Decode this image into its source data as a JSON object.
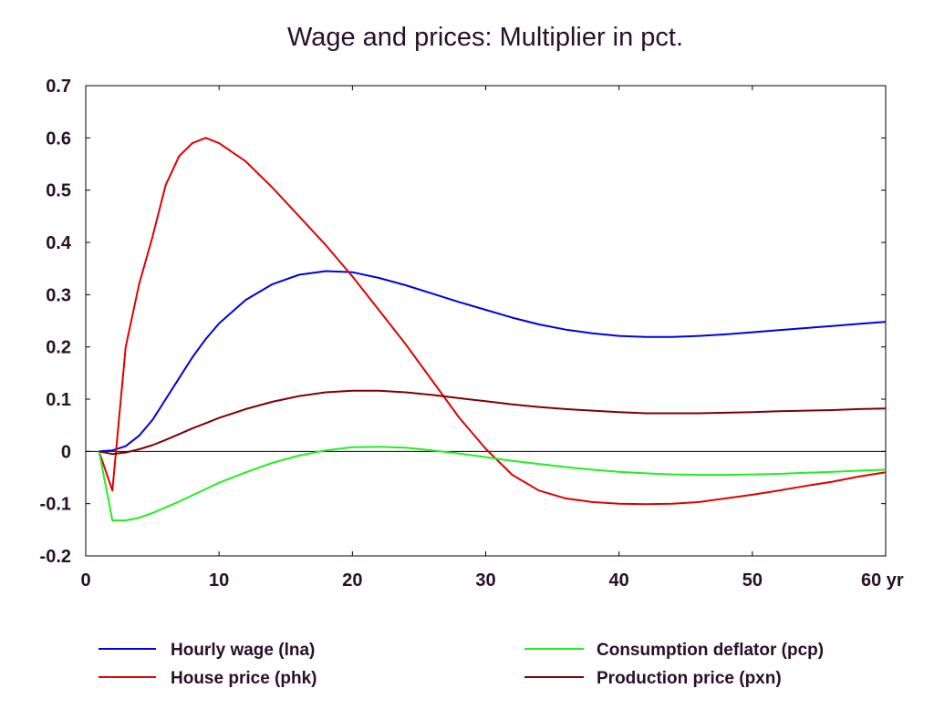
{
  "chart_data": {
    "type": "line",
    "title": "Wage and prices: Multiplier in pct.",
    "xlabel": "",
    "ylabel": "",
    "xlim": [
      0,
      60
    ],
    "ylim": [
      -0.2,
      0.7
    ],
    "x_ticks": [
      {
        "value": 0,
        "label": "0"
      },
      {
        "value": 10,
        "label": "10"
      },
      {
        "value": 20,
        "label": "20"
      },
      {
        "value": 30,
        "label": "30"
      },
      {
        "value": 40,
        "label": "40"
      },
      {
        "value": 50,
        "label": "50"
      },
      {
        "value": 60,
        "label": "60 yr"
      }
    ],
    "y_ticks": [
      {
        "value": 0.7,
        "label": "0.7"
      },
      {
        "value": 0.6,
        "label": "0.6"
      },
      {
        "value": 0.5,
        "label": "0.5"
      },
      {
        "value": 0.4,
        "label": "0.4"
      },
      {
        "value": 0.3,
        "label": "0.3"
      },
      {
        "value": 0.2,
        "label": "0.2"
      },
      {
        "value": 0.1,
        "label": "0.1"
      },
      {
        "value": 0,
        "label": "0"
      },
      {
        "value": -0.1,
        "label": "-0.1"
      },
      {
        "value": -0.2,
        "label": "-0.2"
      }
    ],
    "zero_line": true,
    "grid": false,
    "legend_position": "bottom",
    "x": [
      1,
      2,
      3,
      4,
      5,
      6,
      7,
      8,
      9,
      10,
      12,
      14,
      16,
      18,
      20,
      22,
      24,
      26,
      28,
      30,
      32,
      34,
      36,
      38,
      40,
      42,
      44,
      46,
      48,
      50,
      52,
      54,
      56,
      58,
      60
    ],
    "series": [
      {
        "name": "Hourly wage (lna)",
        "color": "#0000e0",
        "values": [
          0,
          0.002,
          0.01,
          0.03,
          0.06,
          0.1,
          0.14,
          0.18,
          0.215,
          0.245,
          0.29,
          0.32,
          0.338,
          0.345,
          0.343,
          0.332,
          0.318,
          0.302,
          0.286,
          0.271,
          0.256,
          0.243,
          0.233,
          0.226,
          0.221,
          0.219,
          0.219,
          0.221,
          0.224,
          0.228,
          0.232,
          0.236,
          0.24,
          0.244,
          0.248
        ]
      },
      {
        "name": "House price (phk)",
        "color": "#e00000",
        "values": [
          0,
          -0.075,
          0.2,
          0.32,
          0.41,
          0.51,
          0.565,
          0.59,
          0.6,
          0.59,
          0.555,
          0.505,
          0.45,
          0.395,
          0.335,
          0.27,
          0.205,
          0.135,
          0.065,
          0.005,
          -0.045,
          -0.075,
          -0.09,
          -0.097,
          -0.1,
          -0.101,
          -0.1,
          -0.097,
          -0.09,
          -0.083,
          -0.075,
          -0.066,
          -0.058,
          -0.048,
          -0.04
        ]
      },
      {
        "name": "Consumption deflator (pcp)",
        "color": "#22ee22",
        "values": [
          0,
          -0.132,
          -0.132,
          -0.127,
          -0.118,
          -0.107,
          -0.096,
          -0.084,
          -0.072,
          -0.06,
          -0.04,
          -0.022,
          -0.008,
          0.002,
          0.008,
          0.009,
          0.007,
          0.002,
          -0.004,
          -0.011,
          -0.018,
          -0.024,
          -0.03,
          -0.035,
          -0.039,
          -0.042,
          -0.044,
          -0.045,
          -0.045,
          -0.044,
          -0.043,
          -0.041,
          -0.039,
          -0.037,
          -0.035
        ]
      },
      {
        "name": "Production price (pxn)",
        "color": "#800000",
        "values": [
          0,
          -0.005,
          -0.002,
          0.004,
          0.012,
          0.022,
          0.033,
          0.044,
          0.054,
          0.064,
          0.081,
          0.095,
          0.106,
          0.113,
          0.116,
          0.116,
          0.113,
          0.108,
          0.102,
          0.096,
          0.09,
          0.085,
          0.081,
          0.078,
          0.075,
          0.073,
          0.073,
          0.073,
          0.074,
          0.075,
          0.077,
          0.078,
          0.079,
          0.081,
          0.082
        ]
      }
    ]
  }
}
